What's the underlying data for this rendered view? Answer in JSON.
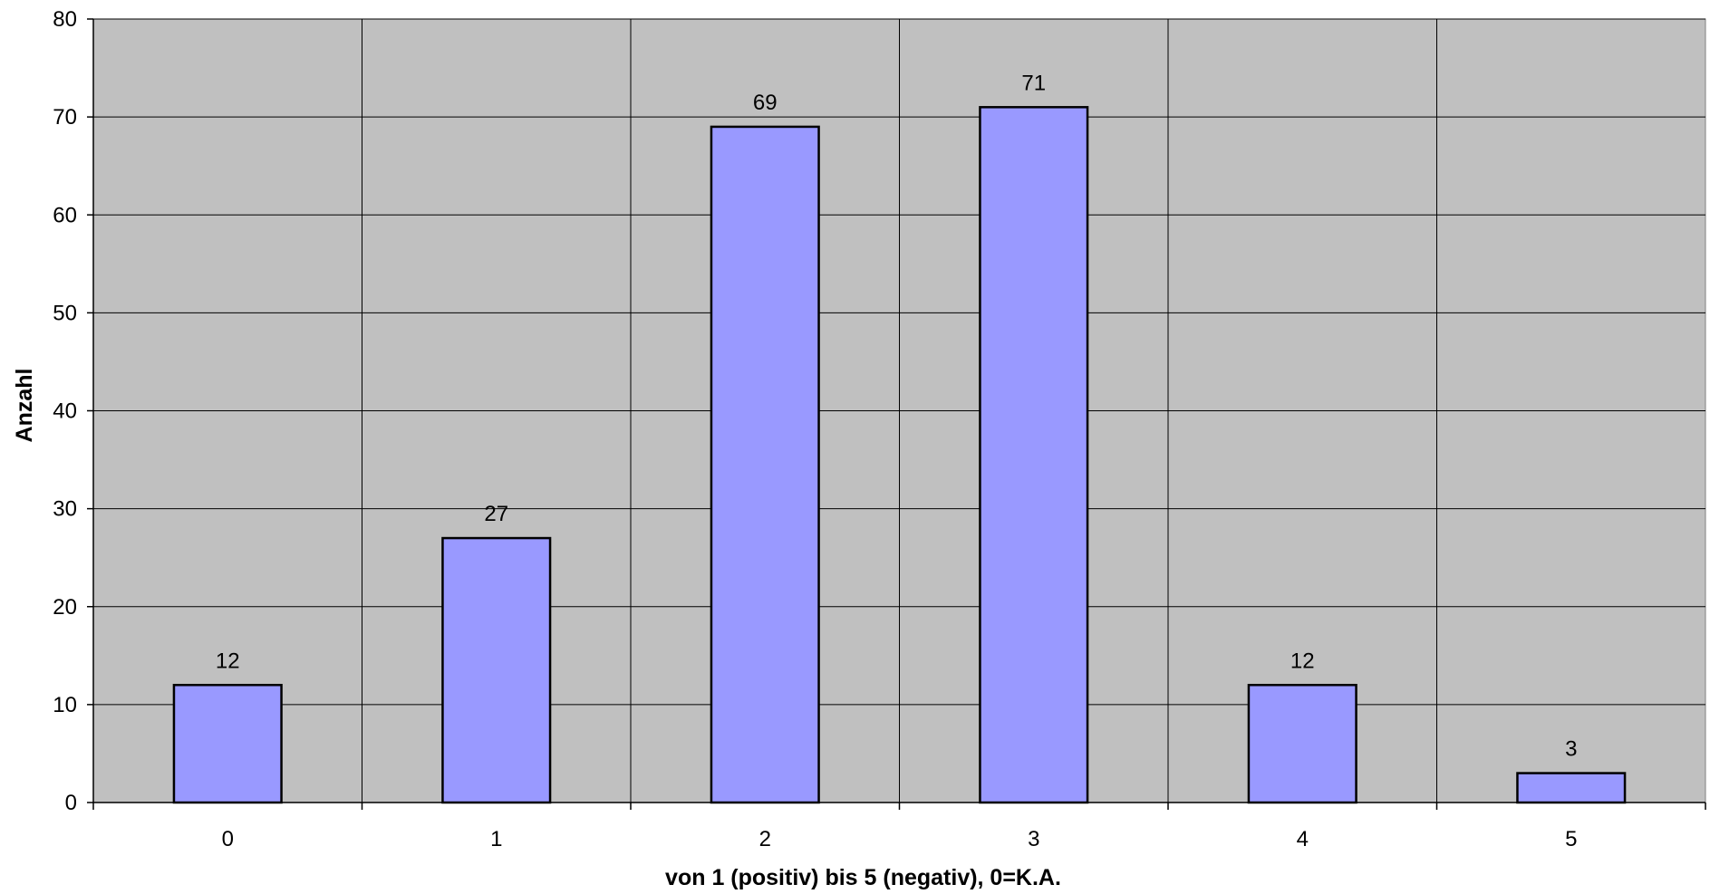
{
  "chart_data": {
    "type": "bar",
    "categories": [
      "0",
      "1",
      "2",
      "3",
      "4",
      "5"
    ],
    "values": [
      12,
      27,
      69,
      71,
      12,
      3
    ],
    "data_labels": [
      "12",
      "27",
      "69",
      "71",
      "12",
      "3"
    ],
    "title": "",
    "xlabel": "von 1 (positiv) bis 5 (negativ), 0=K.A.",
    "ylabel": "Anzahl",
    "ylim": [
      0,
      80
    ],
    "yticks": [
      0,
      10,
      20,
      30,
      40,
      50,
      60,
      70,
      80
    ],
    "ytick_labels": [
      "0",
      "10",
      "20",
      "30",
      "40",
      "50",
      "60",
      "70",
      "80"
    ],
    "grid": true,
    "legend": "none",
    "colors": {
      "plot_background": "#c0c0c0",
      "bar_fill": "#9999ff",
      "bar_stroke": "#000000",
      "gridline": "#000000"
    }
  }
}
